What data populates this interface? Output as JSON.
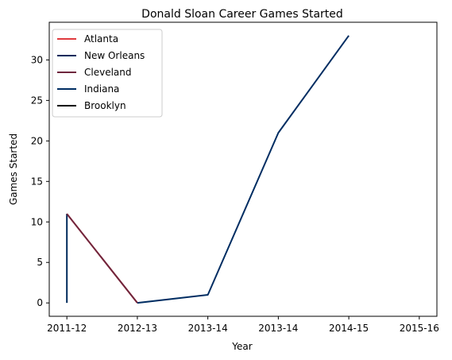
{
  "chart_data": {
    "type": "line",
    "title": "Donald Sloan  Career Games Started",
    "xlabel": "Year",
    "ylabel": "Games Started",
    "categories": [
      "2011-12",
      "2012-13",
      "2013-14",
      "2013-14",
      "2014-15",
      "2015-16"
    ],
    "yticks": [
      0,
      5,
      10,
      15,
      20,
      25,
      30
    ],
    "ylim": [
      -1.65,
      34.65
    ],
    "xlim": [
      -0.25,
      5.25
    ],
    "grid": false,
    "legend_position": "upper-left",
    "series": [
      {
        "name": "Atlanta",
        "color": "#E03A3E",
        "points": [
          [
            0,
            11
          ],
          [
            1,
            0
          ]
        ]
      },
      {
        "name": "New Orleans",
        "color": "#002B5C",
        "points": [
          [
            0,
            0
          ],
          [
            0,
            11
          ]
        ]
      },
      {
        "name": "Cleveland",
        "color": "#6F263D",
        "points": [
          [
            0,
            11
          ],
          [
            1,
            0
          ]
        ]
      },
      {
        "name": "Indiana",
        "color": "#002D62",
        "points": [
          [
            1,
            0
          ],
          [
            2,
            1
          ],
          [
            3,
            21
          ],
          [
            4,
            33
          ]
        ]
      },
      {
        "name": "Brooklyn",
        "color": "#000000",
        "points": []
      }
    ]
  }
}
